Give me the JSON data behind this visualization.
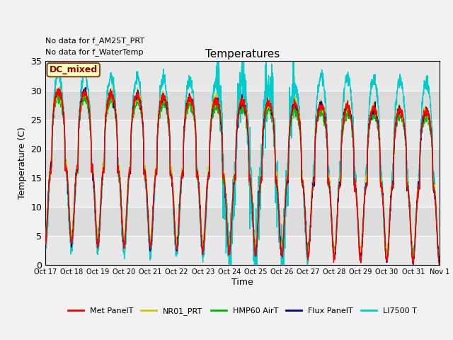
{
  "title": "Temperatures",
  "ylabel": "Temperature (C)",
  "xlabel": "Time",
  "ylim": [
    0,
    35
  ],
  "xlim": [
    0,
    15
  ],
  "no_data_texts": [
    "No data for f_AM25T_PRT",
    "No data for f_WaterTemp"
  ],
  "dc_mixed_label": "DC_mixed",
  "legend": [
    {
      "label": "Met PanelT",
      "color": "#FF0000"
    },
    {
      "label": "NR01_PRT",
      "color": "#DDDD00"
    },
    {
      "label": "HMP60 AirT",
      "color": "#00CC00"
    },
    {
      "label": "Flux PanelT",
      "color": "#000099"
    },
    {
      "label": "LI7500 T",
      "color": "#00DDDD"
    }
  ],
  "xtick_labels": [
    "Oct 17",
    "Oct 18",
    "Oct 19",
    "Oct 20",
    "Oct 21",
    "Oct 22",
    "Oct 23",
    "Oct 24",
    "Oct 25",
    "Oct 26",
    "Oct 27",
    "Oct 28",
    "Oct 29",
    "Oct 30",
    "Oct 31",
    "Nov 1"
  ],
  "yticks": [
    0,
    5,
    10,
    15,
    20,
    25,
    30,
    35
  ],
  "band_colors": [
    "#E8E8E8",
    "#DCDCDC"
  ],
  "figsize": [
    6.4,
    4.8
  ],
  "dpi": 100
}
